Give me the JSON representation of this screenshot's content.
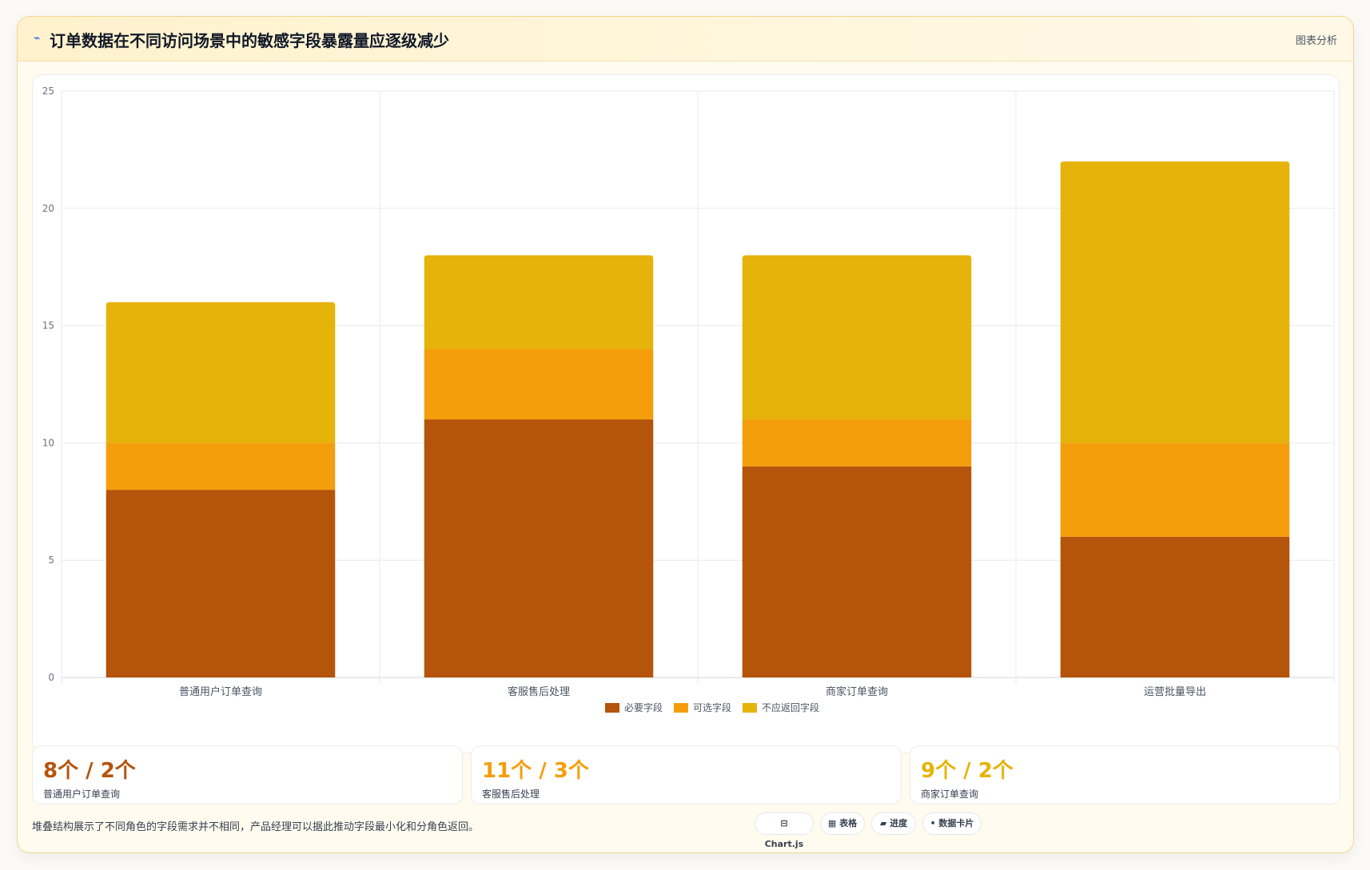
{
  "header": {
    "icon": "⌁",
    "title": "订单数据在不同访问场景中的敏感字段暴露量应逐级减少",
    "tag": "图表分析"
  },
  "chart_data": {
    "type": "bar",
    "stacked": true,
    "categories": [
      "普通用户订单查询",
      "客服售后处理",
      "商家订单查询",
      "运营批量导出"
    ],
    "series": [
      {
        "name": "必要字段",
        "values": [
          8,
          11,
          9,
          6
        ],
        "color": "#b5540b"
      },
      {
        "name": "可选字段",
        "values": [
          2,
          3,
          2,
          4
        ],
        "color": "#f49e0c"
      },
      {
        "name": "不应返回字段",
        "values": [
          6,
          4,
          7,
          12
        ],
        "color": "#e6b30b"
      }
    ],
    "ylim": [
      0,
      25
    ],
    "yticks": [
      0,
      5,
      10,
      15,
      20,
      25
    ],
    "grid": true,
    "legend_position": "bottom"
  },
  "stats": [
    {
      "value": "8个 / 2个",
      "label": "普通用户订单查询",
      "color": "#b5540b"
    },
    {
      "value": "11个 / 3个",
      "label": "客服售后处理",
      "color": "#f49e0c"
    },
    {
      "value": "9个 / 2个",
      "label": "商家订单查询",
      "color": "#e6b30b"
    }
  ],
  "footer": {
    "note": "堆叠结构展示了不同角色的字段需求并不相同，产品经理可以据此推动字段最小化和分角色返回。",
    "pills": [
      {
        "icon": "chart-icon",
        "label": "⊟ Chart.js"
      },
      {
        "icon": "table-icon",
        "label": "▦ 表格"
      },
      {
        "icon": "progress-icon",
        "label": "▰ 进度"
      },
      {
        "icon": "card-icon",
        "label": "• 数据卡片"
      }
    ]
  }
}
